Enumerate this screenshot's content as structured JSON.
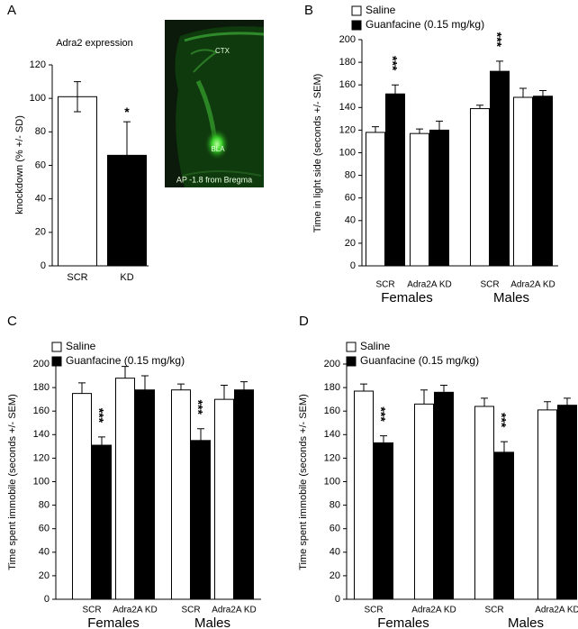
{
  "panels": [
    "A",
    "B",
    "C",
    "D"
  ],
  "image": {
    "labels": [
      "CTX",
      "BLA",
      "AP -1.8 from Bregma"
    ]
  },
  "chart_data": [
    {
      "type": "bar",
      "title": "Adra2 expression",
      "ylabel": "knockdown (% +/- SD)",
      "categories": [
        "SCR",
        "KD"
      ],
      "values": [
        101,
        66
      ],
      "errors": [
        9,
        20
      ],
      "colors": [
        "#ffffff",
        "#000000"
      ],
      "ylim": [
        0,
        120
      ],
      "yticks": [
        0,
        20,
        40,
        60,
        80,
        100,
        120
      ],
      "annotations": [
        {
          "text": "*",
          "index": 1
        }
      ]
    },
    {
      "type": "grouped_bar",
      "ylabel": "Time in light side (seconds +/- SEM)",
      "categories": [
        "SCR",
        "Adra2A KD",
        "SCR",
        "Adra2A KD"
      ],
      "groups": [
        "Females",
        "Males"
      ],
      "series": [
        {
          "name": "Saline",
          "color": "#ffffff",
          "values": [
            118,
            117,
            139,
            149
          ],
          "errors": [
            5,
            4,
            3,
            8
          ]
        },
        {
          "name": "Guanfacine (0.15 mg/kg)",
          "color": "#000000",
          "values": [
            152,
            120,
            172,
            150
          ],
          "errors": [
            8,
            8,
            9,
            5
          ]
        }
      ],
      "ylim": [
        0,
        200
      ],
      "yticks": [
        0,
        20,
        40,
        60,
        80,
        100,
        120,
        140,
        160,
        180,
        200
      ],
      "annotations": [
        {
          "text": "***",
          "index": 0,
          "series": 1
        },
        {
          "text": "***",
          "index": 2,
          "series": 1
        }
      ]
    },
    {
      "type": "grouped_bar",
      "ylabel": "Time spent immobile (seconds +/- SEM)",
      "categories": [
        "SCR",
        "Adra2A KD",
        "SCR",
        "Adra2A KD"
      ],
      "groups": [
        "Females",
        "Males"
      ],
      "series": [
        {
          "name": "Saline",
          "color": "#ffffff",
          "values": [
            175,
            188,
            178,
            170
          ],
          "errors": [
            9,
            10,
            5,
            12
          ]
        },
        {
          "name": "Guanfacine (0.15 mg/kg)",
          "color": "#000000",
          "values": [
            131,
            178,
            135,
            178
          ],
          "errors": [
            7,
            12,
            10,
            7
          ]
        }
      ],
      "ylim": [
        0,
        200
      ],
      "yticks": [
        0,
        20,
        40,
        60,
        80,
        100,
        120,
        140,
        160,
        180,
        200
      ],
      "annotations": [
        {
          "text": "***",
          "index": 0,
          "series": 1
        },
        {
          "text": "***",
          "index": 2,
          "series": 1
        }
      ]
    },
    {
      "type": "grouped_bar",
      "ylabel": "Time spent immobile (seconds +/- SEM)",
      "categories": [
        "SCR",
        "Adra2A KD",
        "SCR",
        "Adra2A KD"
      ],
      "groups": [
        "Females",
        "Males"
      ],
      "series": [
        {
          "name": "Saline",
          "color": "#ffffff",
          "values": [
            177,
            166,
            164,
            161
          ],
          "errors": [
            6,
            12,
            7,
            7
          ]
        },
        {
          "name": "Guanfacine (0.15 mg/kg)",
          "color": "#000000",
          "values": [
            133,
            176,
            125,
            165
          ],
          "errors": [
            6,
            6,
            9,
            6
          ]
        }
      ],
      "ylim": [
        0,
        200
      ],
      "yticks": [
        0,
        20,
        40,
        60,
        80,
        100,
        120,
        140,
        160,
        180,
        200
      ],
      "annotations": [
        {
          "text": "***",
          "index": 0,
          "series": 1
        },
        {
          "text": "***",
          "index": 2,
          "series": 1
        }
      ]
    }
  ]
}
